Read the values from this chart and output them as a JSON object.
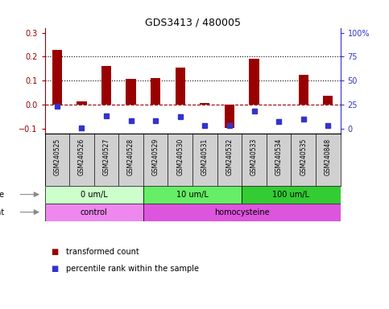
{
  "title": "GDS3413 / 480005",
  "samples": [
    "GSM240525",
    "GSM240526",
    "GSM240527",
    "GSM240528",
    "GSM240529",
    "GSM240530",
    "GSM240531",
    "GSM240532",
    "GSM240533",
    "GSM240534",
    "GSM240535",
    "GSM240848"
  ],
  "transformed_count": [
    0.228,
    0.015,
    0.16,
    0.107,
    0.112,
    0.155,
    0.007,
    -0.095,
    0.19,
    0.0,
    0.125,
    0.037
  ],
  "percentile_rank": [
    -0.005,
    -0.095,
    -0.045,
    -0.065,
    -0.065,
    -0.05,
    -0.085,
    -0.085,
    -0.025,
    -0.07,
    -0.06,
    -0.085
  ],
  "red_color": "#990000",
  "blue_color": "#3333cc",
  "left_ylim": [
    -0.12,
    0.32
  ],
  "left_yticks": [
    -0.1,
    0.0,
    0.1,
    0.2,
    0.3
  ],
  "right_tick_y": [
    -0.1,
    0.0,
    0.1,
    0.2,
    0.3
  ],
  "right_tick_labels": [
    "0",
    "25",
    "50",
    "75",
    "100%"
  ],
  "hline_y": 0.0,
  "dotted_lines": [
    0.1,
    0.2
  ],
  "dose_groups": [
    {
      "label": "0 um/L",
      "start": 0,
      "end": 4,
      "color": "#ccffcc"
    },
    {
      "label": "10 um/L",
      "start": 4,
      "end": 8,
      "color": "#66ee66"
    },
    {
      "label": "100 um/L",
      "start": 8,
      "end": 12,
      "color": "#33cc33"
    }
  ],
  "agent_groups": [
    {
      "label": "control",
      "start": 0,
      "end": 4,
      "color": "#ee88ee"
    },
    {
      "label": "homocysteine",
      "start": 4,
      "end": 12,
      "color": "#dd55dd"
    }
  ],
  "legend_items": [
    {
      "label": "transformed count",
      "color": "#990000"
    },
    {
      "label": "percentile rank within the sample",
      "color": "#3333cc"
    }
  ],
  "sample_bg": "#d0d0d0",
  "plot_bg": "#ffffff",
  "bar_width": 0.4
}
